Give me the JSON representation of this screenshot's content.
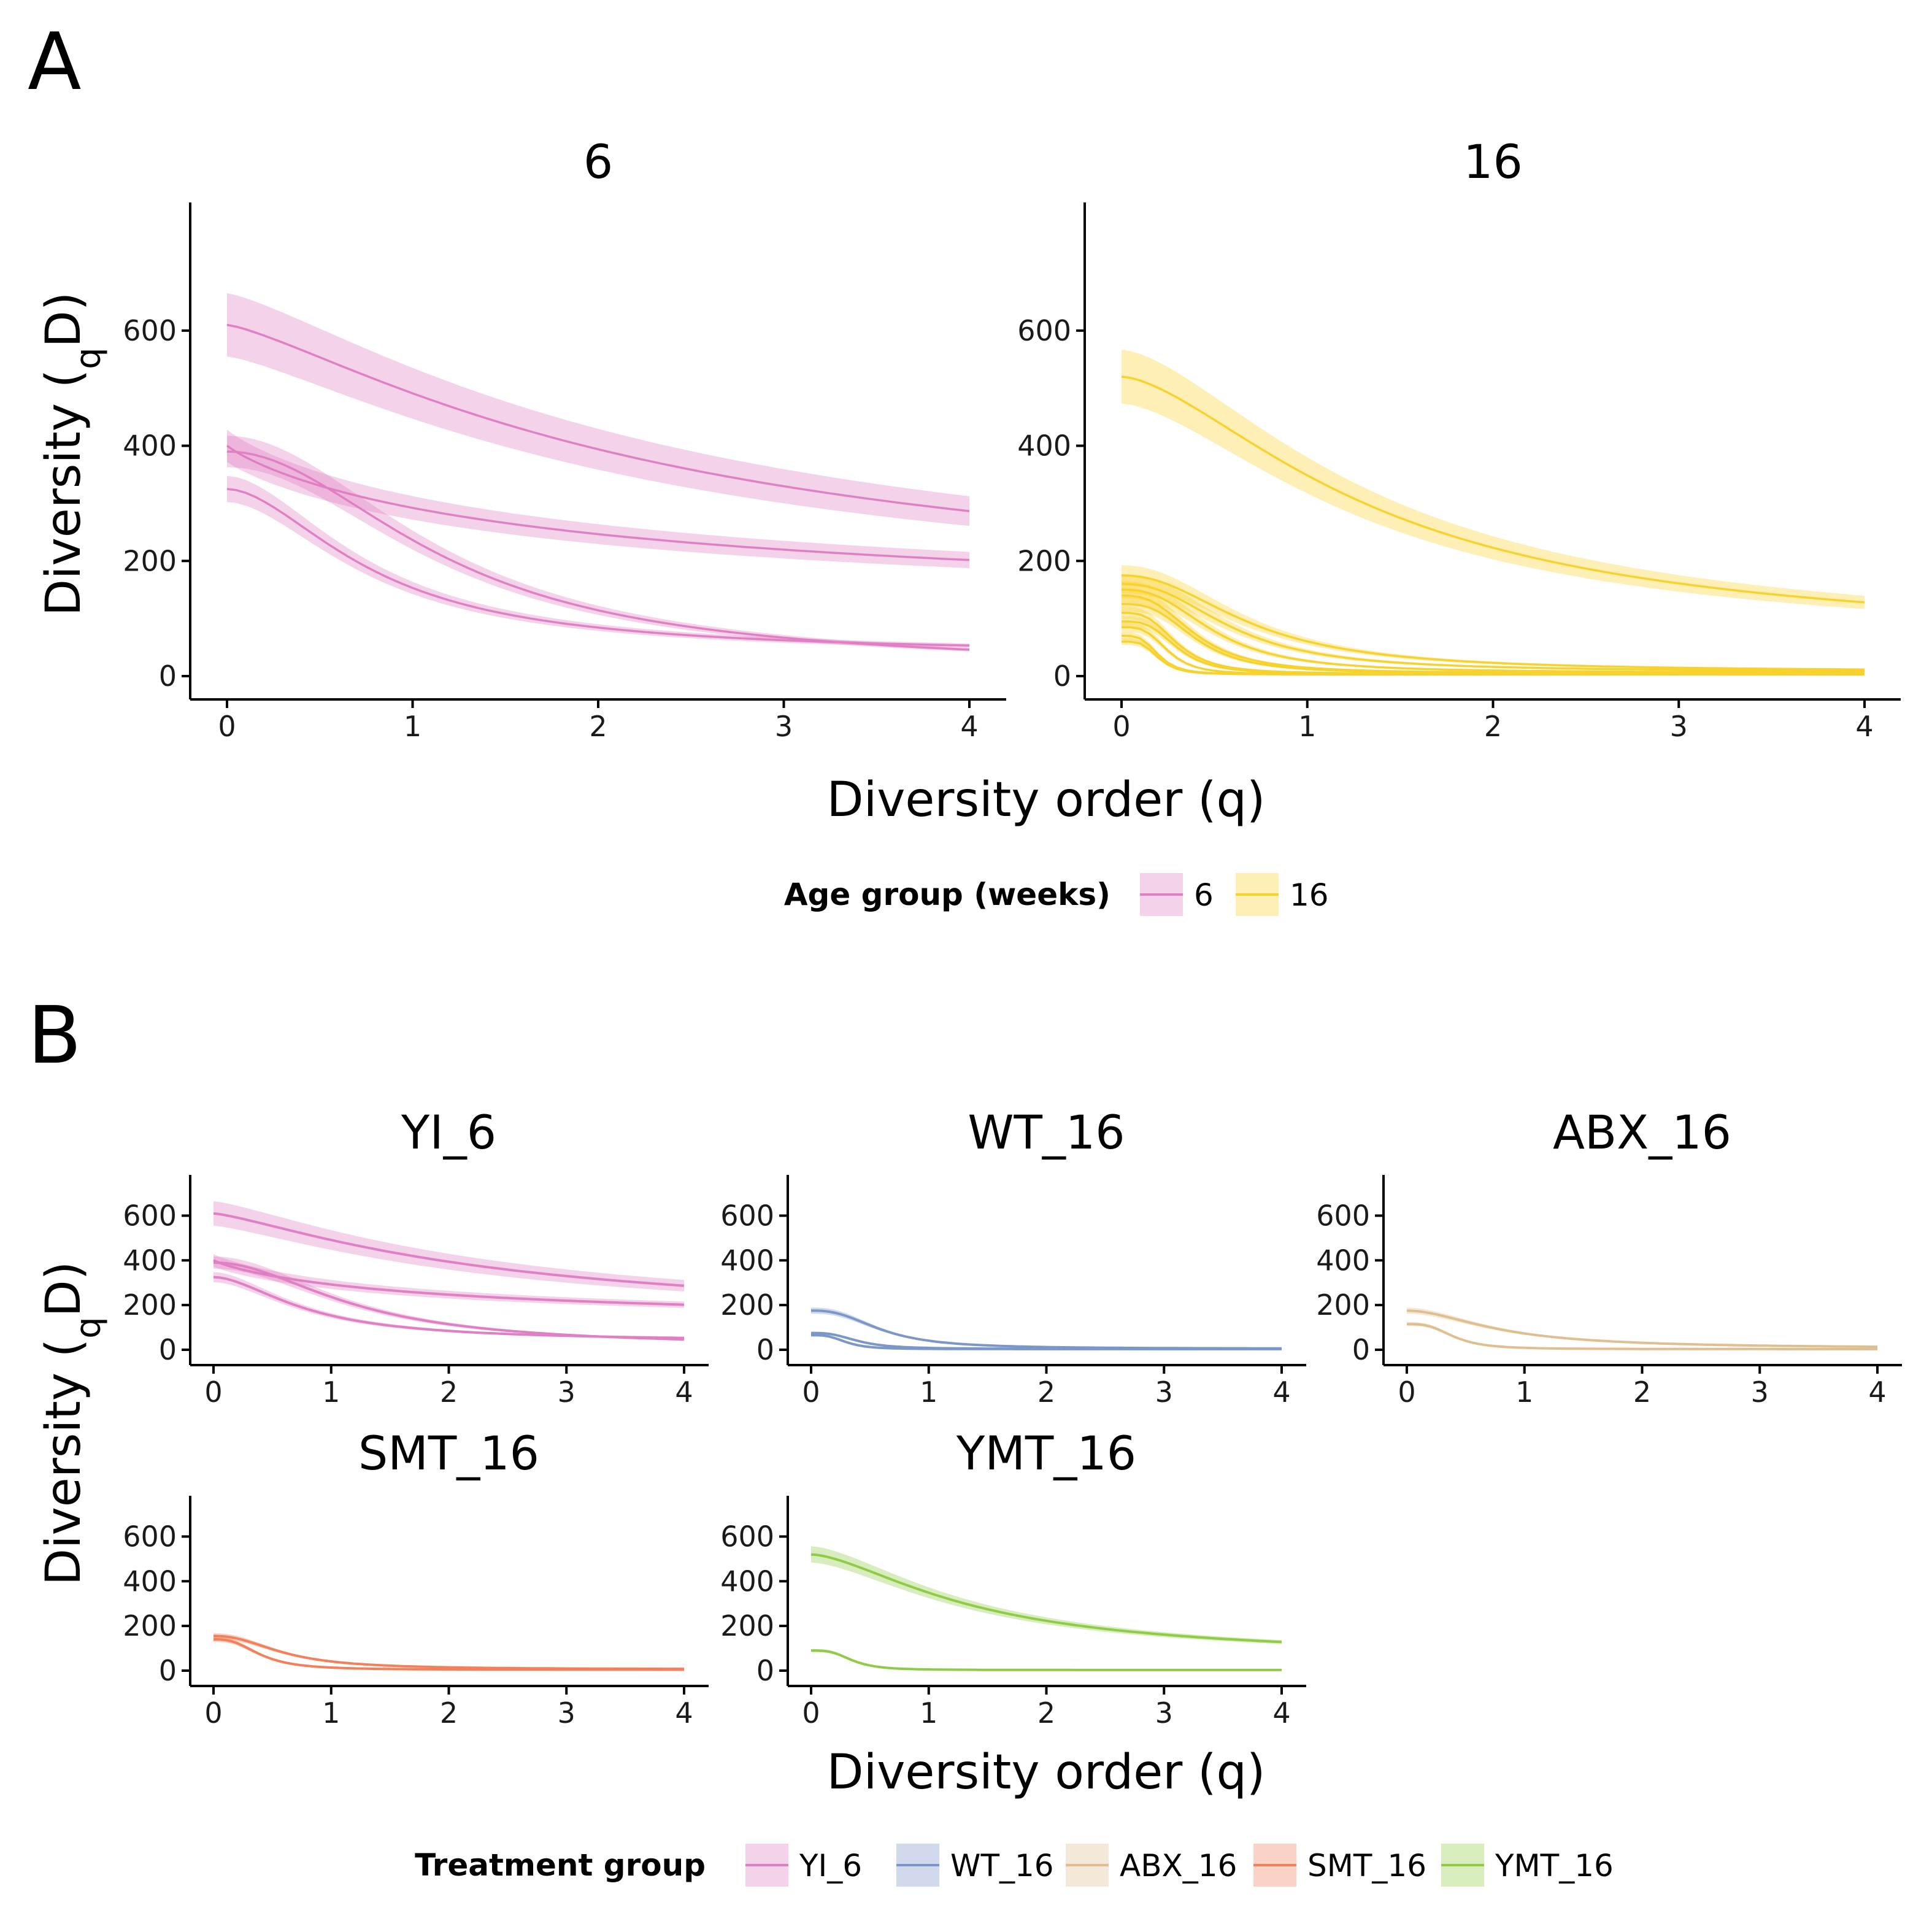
{
  "panel_labels": {
    "a": "A",
    "b": "B"
  },
  "colors": {
    "6": "#e07fc4",
    "16": "#f8d22c",
    "YI_6": "#e07fc4",
    "WT_16": "#7b96c9",
    "ABX_16": "#dfbf8f",
    "SMT_16": "#f47f5b",
    "YMT_16": "#8fcb45"
  },
  "chart_data": [
    {
      "type": "line",
      "panel": "A",
      "xlabel": "Diversity order (q)",
      "ylabel": "Diversity (qD)",
      "ylabel_main": "Diversity (",
      "ylabel_sub": "q",
      "ylabel_end": "D)",
      "xlim": [
        0,
        4
      ],
      "ylim": [
        -35,
        735
      ],
      "xticks": [
        0,
        1,
        2,
        3,
        4
      ],
      "yticks": [
        0,
        200,
        400,
        600
      ],
      "legend": {
        "title": "Age group (weeks)",
        "position": "bottom",
        "entries": [
          "6",
          "16"
        ]
      },
      "facets": [
        {
          "title": "6",
          "group": "6",
          "series": [
            {
              "d0": 610,
              "dinf": 120,
              "k": 1.3,
              "m": 2.4,
              "band": 0.09
            },
            {
              "d0": 400,
              "dinf": 100,
              "k": 0.9,
              "m": 1.9,
              "band": 0.07
            },
            {
              "d0": 390,
              "dinf": 15,
              "k": 2.0,
              "m": 1.2,
              "band": 0.07
            },
            {
              "d0": 325,
              "dinf": 38,
              "k": 1.8,
              "m": 0.8,
              "band": 0.07
            }
          ]
        },
        {
          "title": "16",
          "group": "16",
          "series": [
            {
              "d0": 520,
              "dinf": 55,
              "k": 1.6,
              "m": 1.4,
              "band": 0.09
            },
            {
              "d0": 175,
              "dinf": 8,
              "k": 2.2,
              "m": 0.7,
              "band": 0.1
            },
            {
              "d0": 160,
              "dinf": 8,
              "k": 2.4,
              "m": 0.6,
              "band": 0.1
            },
            {
              "d0": 150,
              "dinf": 6,
              "k": 2.6,
              "m": 0.5,
              "band": 0.1
            },
            {
              "d0": 140,
              "dinf": 5,
              "k": 2.8,
              "m": 0.4,
              "band": 0.1
            },
            {
              "d0": 125,
              "dinf": 5,
              "k": 3.0,
              "m": 0.4,
              "band": 0.1
            },
            {
              "d0": 110,
              "dinf": 4,
              "k": 3.2,
              "m": 0.3,
              "band": 0.1
            },
            {
              "d0": 95,
              "dinf": 4,
              "k": 3.4,
              "m": 0.3,
              "band": 0.1
            },
            {
              "d0": 85,
              "dinf": 3,
              "k": 3.6,
              "m": 0.25,
              "band": 0.1
            },
            {
              "d0": 70,
              "dinf": 3,
              "k": 3.8,
              "m": 0.2,
              "band": 0.1
            },
            {
              "d0": 60,
              "dinf": 3,
              "k": 4.0,
              "m": 0.2,
              "band": 0.1
            }
          ]
        }
      ]
    },
    {
      "type": "line",
      "panel": "B",
      "xlabel": "Diversity order (q)",
      "ylabel": "Diversity (qD)",
      "ylabel_main": "Diversity (",
      "ylabel_sub": "q",
      "ylabel_end": "D)",
      "xlim": [
        0,
        4
      ],
      "ylim": [
        -35,
        735
      ],
      "xticks": [
        0,
        1,
        2,
        3,
        4
      ],
      "yticks": [
        0,
        200,
        400,
        600
      ],
      "legend": {
        "title": "Treatment group",
        "position": "bottom",
        "entries": [
          "YI_6",
          "WT_16",
          "ABX_16",
          "SMT_16",
          "YMT_16"
        ]
      },
      "facets": [
        {
          "title": "YI_6",
          "group": "YI_6",
          "series": [
            {
              "d0": 610,
              "dinf": 120,
              "k": 1.3,
              "m": 2.4,
              "band": 0.09
            },
            {
              "d0": 400,
              "dinf": 100,
              "k": 0.9,
              "m": 1.9,
              "band": 0.07
            },
            {
              "d0": 390,
              "dinf": 15,
              "k": 2.0,
              "m": 1.2,
              "band": 0.07
            },
            {
              "d0": 325,
              "dinf": 38,
              "k": 1.8,
              "m": 0.8,
              "band": 0.07
            }
          ]
        },
        {
          "title": "WT_16",
          "group": "WT_16",
          "series": [
            {
              "d0": 175,
              "dinf": 5,
              "k": 2.6,
              "m": 0.6,
              "band": 0.08
            },
            {
              "d0": 75,
              "dinf": 4,
              "k": 3.0,
              "m": 0.4,
              "band": 0.08
            },
            {
              "d0": 65,
              "dinf": 3,
              "k": 3.4,
              "m": 0.3,
              "band": 0.08
            }
          ]
        },
        {
          "title": "ABX_16",
          "group": "ABX_16",
          "series": [
            {
              "d0": 175,
              "dinf": 6,
              "k": 1.9,
              "m": 0.8,
              "band": 0.08
            },
            {
              "d0": 115,
              "dinf": 3,
              "k": 3.2,
              "m": 0.4,
              "band": 0.08
            }
          ]
        },
        {
          "title": "SMT_16",
          "group": "SMT_16",
          "series": [
            {
              "d0": 155,
              "dinf": 6,
              "k": 2.3,
              "m": 0.6,
              "band": 0.08
            },
            {
              "d0": 140,
              "dinf": 4,
              "k": 2.8,
              "m": 0.4,
              "band": 0.08
            }
          ]
        },
        {
          "title": "YMT_16",
          "group": "YMT_16",
          "series": [
            {
              "d0": 520,
              "dinf": 55,
              "k": 1.6,
              "m": 1.4,
              "band": 0.07
            },
            {
              "d0": 90,
              "dinf": 3,
              "k": 3.4,
              "m": 0.35,
              "band": 0.08
            }
          ]
        }
      ]
    }
  ]
}
